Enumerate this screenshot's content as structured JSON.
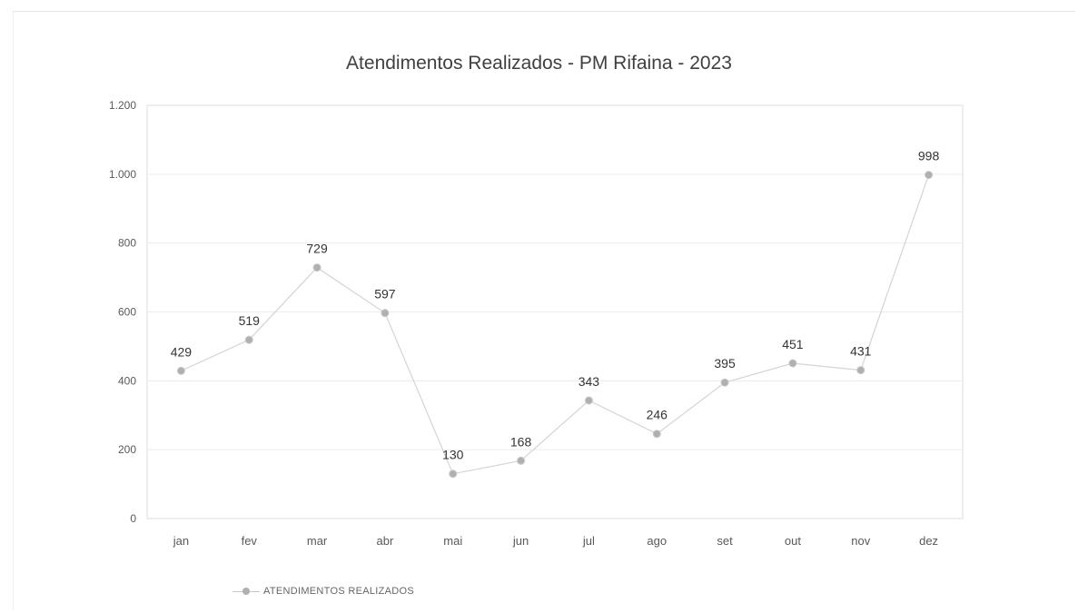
{
  "chart_data": {
    "type": "line",
    "title": "Atendimentos Realizados - PM Rifaina - 2023",
    "xlabel": "",
    "ylabel": "",
    "categories": [
      "jan",
      "fev",
      "mar",
      "abr",
      "mai",
      "jun",
      "jul",
      "ago",
      "set",
      "out",
      "nov",
      "dez"
    ],
    "series": [
      {
        "name": "ATENDIMENTOS REALIZADOS",
        "values": [
          429,
          519,
          729,
          597,
          130,
          168,
          343,
          246,
          395,
          451,
          431,
          998
        ],
        "color": "#b0b0b0"
      }
    ],
    "ylim": [
      0,
      1200
    ],
    "yticks": [
      0,
      200,
      400,
      600,
      800,
      1000,
      1200
    ],
    "ytick_labels": [
      "0",
      "200",
      "400",
      "600",
      "800",
      "1.000",
      "1.200"
    ],
    "grid": true,
    "legend": "bottom-left",
    "data_labels": [
      "429",
      "519",
      "729",
      "597",
      "130",
      "168",
      "343",
      "246",
      "395",
      "451",
      "431",
      "998"
    ]
  }
}
